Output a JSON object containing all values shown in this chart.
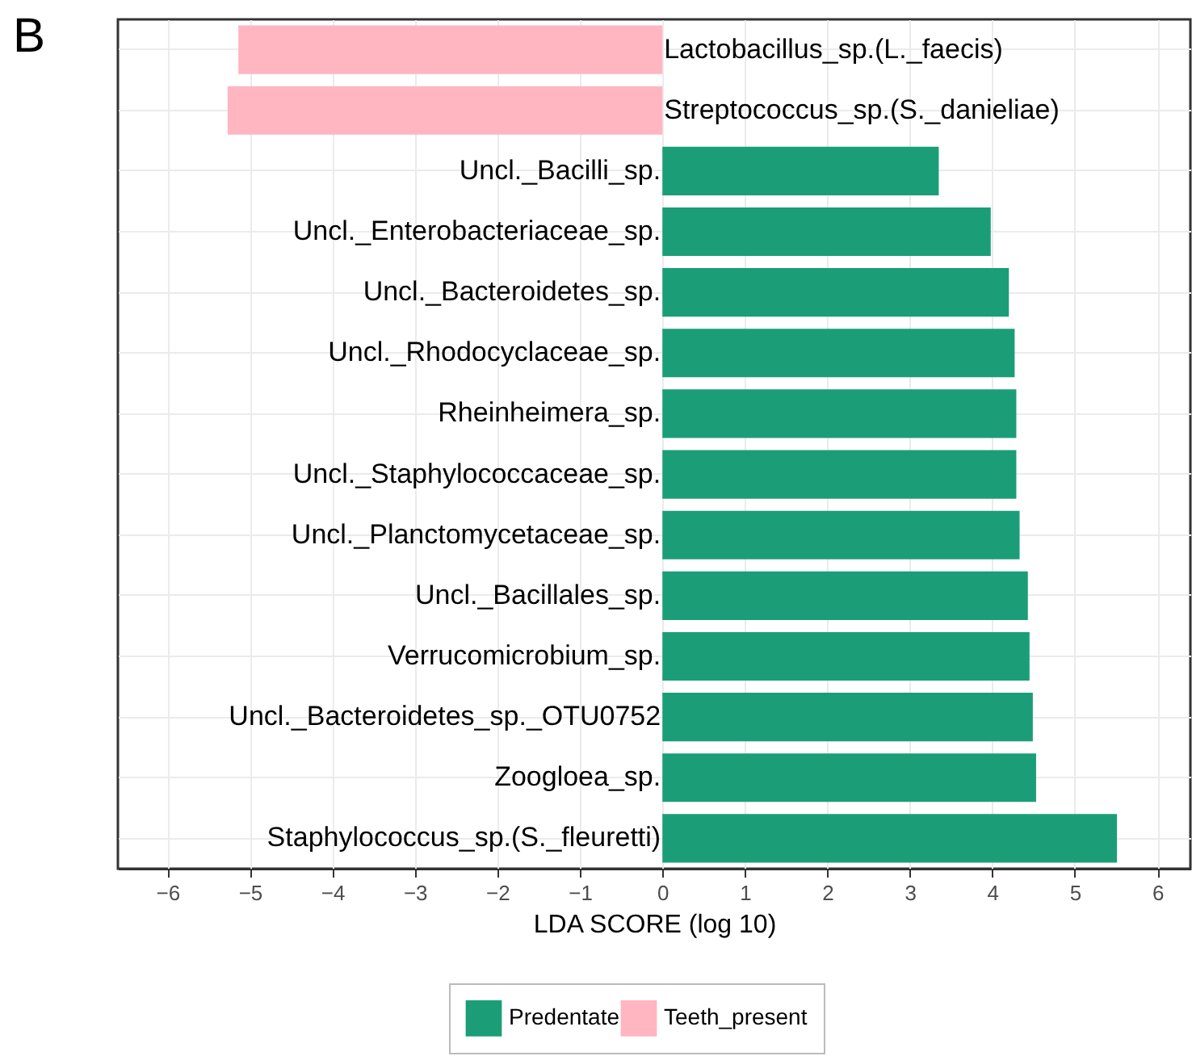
{
  "chart_data": {
    "type": "bar",
    "orientation": "horizontal",
    "annotations": [
      "B"
    ],
    "xlabel": "LDA SCORE (log 10)",
    "categories": [
      "Lactobacillus_sp.(L._faecis)",
      "Streptococcus_sp.(S._danieliae)",
      "Uncl._Bacilli_sp.",
      "Uncl._Enterobacteriaceae_sp.",
      "Uncl._Bacteroidetes_sp.",
      "Uncl._Rhodocyclaceae_sp.",
      "Rheinheimera_sp.",
      "Uncl._Staphylococcaceae_sp.",
      "Uncl._Planctomycetaceae_sp.",
      "Uncl._Bacillales_sp.",
      "Verrucomicrobium_sp.",
      "Uncl._Bacteroidetes_sp._OTU0752",
      "Zoogloea_sp.",
      "Staphylococcus_sp.(S._fleuretti)"
    ],
    "series": [
      {
        "name": "Predentate",
        "color": "#1b9e77",
        "values": [
          null,
          null,
          3.35,
          3.98,
          4.2,
          4.27,
          4.29,
          4.29,
          4.33,
          4.43,
          4.45,
          4.49,
          4.53,
          5.51
        ]
      },
      {
        "name": "Teeth_present",
        "color": "#ffb6c1",
        "values": [
          -5.14,
          -5.27,
          null,
          null,
          null,
          null,
          null,
          null,
          null,
          null,
          null,
          null,
          null,
          null
        ]
      }
    ],
    "xlim": [
      -6.6,
      6.4
    ],
    "xticks": [
      -6,
      -5,
      -4,
      -3,
      -2,
      -1,
      0,
      1,
      2,
      3,
      4,
      5,
      6
    ],
    "grid": true,
    "legend": "bottom"
  }
}
